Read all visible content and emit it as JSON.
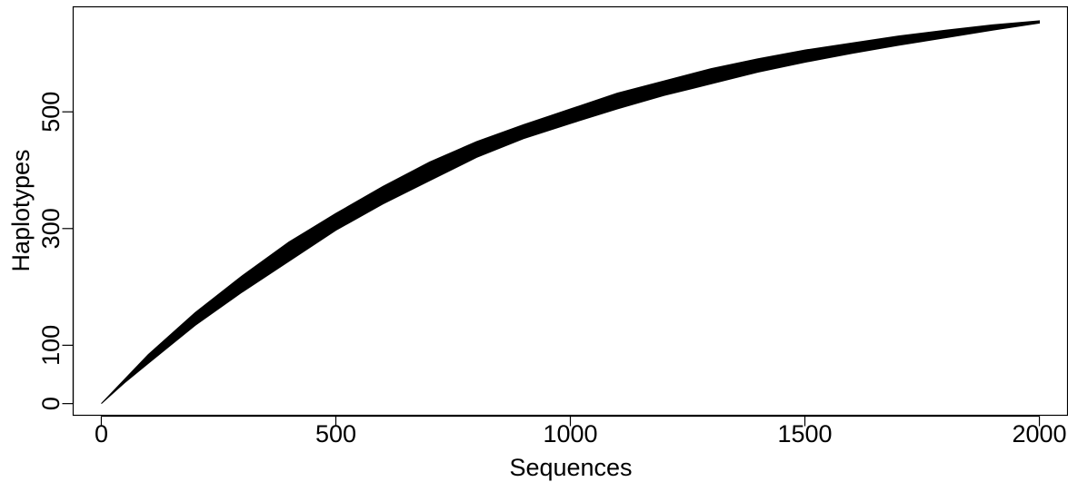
{
  "chart_data": {
    "type": "area",
    "xlabel": "Sequences",
    "ylabel": "Haplotypes",
    "xlim": [
      -60,
      2060
    ],
    "ylim": [
      -20,
      680
    ],
    "xticks": [
      0,
      500,
      1000,
      1500,
      2000
    ],
    "yticks": [
      0,
      100,
      300,
      500
    ],
    "xtick_labels": [
      "0",
      "500",
      "1000",
      "1500",
      "2000"
    ],
    "ytick_labels": [
      "0",
      "100",
      "300",
      "500"
    ],
    "grid": false,
    "legend": "none",
    "band_color": "#000000",
    "series": [
      {
        "x": [
          0,
          50,
          100,
          200,
          300,
          400,
          500,
          600,
          700,
          800,
          900,
          1000,
          1100,
          1200,
          1300,
          1400,
          1500,
          1600,
          1700,
          1800,
          1900,
          2000
        ],
        "upper": [
          0,
          42,
          84,
          156,
          219,
          277,
          326,
          372,
          414,
          449,
          478,
          505,
          532,
          553,
          574,
          591,
          606,
          618,
          630,
          640,
          649,
          656
        ],
        "lower": [
          0,
          36,
          69,
          134,
          191,
          244,
          297,
          342,
          382,
          422,
          454,
          480,
          505,
          528,
          548,
          568,
          585,
          600,
          614,
          627,
          640,
          652
        ]
      }
    ]
  }
}
